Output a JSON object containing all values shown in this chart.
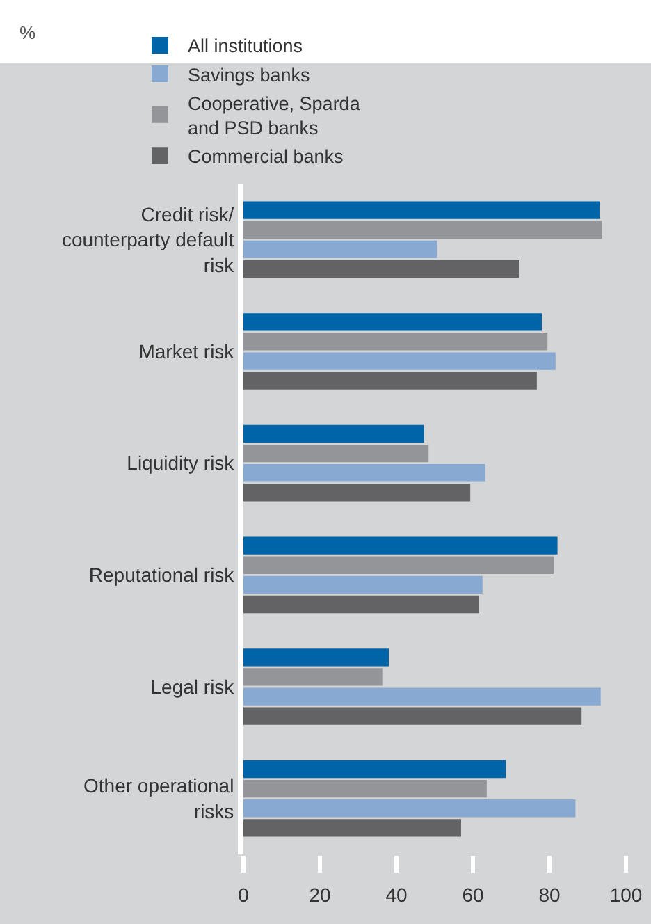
{
  "chart_data": {
    "type": "bar",
    "orientation": "horizontal",
    "annotations": [
      "%"
    ],
    "categories": [
      "Credit risk/ counterparty default risk",
      "Market risk",
      "Liquidity risk",
      "Reputational risk",
      "Legal risk",
      "Other operational risks"
    ],
    "series": [
      {
        "name": "All institutions",
        "color": "#0065a8",
        "values": [
          93.1,
          78.0,
          47.2,
          82.1,
          38.0,
          68.6
        ]
      },
      {
        "name": "Cooperative, Sparda and PSD banks",
        "color": "#939598",
        "values": [
          93.7,
          79.5,
          48.4,
          81.1,
          36.3,
          63.6
        ]
      },
      {
        "name": "Savings banks",
        "color": "#87a9d2",
        "values": [
          50.6,
          81.6,
          63.2,
          62.5,
          93.4,
          86.8
        ]
      },
      {
        "name": "Commercial banks",
        "color": "#636365",
        "values": [
          72.0,
          76.7,
          59.3,
          61.6,
          88.4,
          56.9
        ]
      }
    ],
    "xlim": [
      0,
      100
    ],
    "xticks": [
      0,
      20,
      40,
      60,
      80,
      100
    ],
    "grid": false,
    "legend": "top"
  }
}
